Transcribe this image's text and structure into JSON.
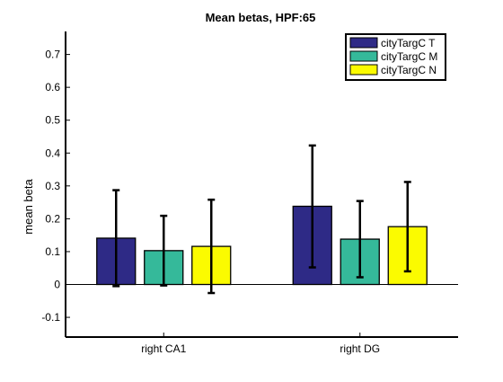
{
  "chart_data": {
    "type": "bar",
    "title": "Mean betas, HPF:65",
    "xlabel": "",
    "ylabel": "mean beta",
    "ylim": [
      -0.16,
      0.77
    ],
    "yticks": [
      -0.1,
      0,
      0.1,
      0.2,
      0.3,
      0.4,
      0.5,
      0.6,
      0.7
    ],
    "ytick_labels": [
      "-0.1",
      "0",
      "0.1",
      "0.2",
      "0.3",
      "0.4",
      "0.5",
      "0.6",
      "0.7"
    ],
    "categories": [
      "right CA1",
      "right DG"
    ],
    "series": [
      {
        "name": "cityTargC T",
        "color": "#2e2a86",
        "values": [
          0.141,
          0.238
        ],
        "err_low": [
          -0.005,
          0.052
        ],
        "err_high": [
          0.287,
          0.423
        ]
      },
      {
        "name": "cityTargC M",
        "color": "#35b99a",
        "values": [
          0.103,
          0.138
        ],
        "err_low": [
          -0.003,
          0.022
        ],
        "err_high": [
          0.209,
          0.254
        ]
      },
      {
        "name": "cityTargC N",
        "color": "#fbfb00",
        "values": [
          0.116,
          0.176
        ],
        "err_low": [
          -0.026,
          0.04
        ],
        "err_high": [
          0.258,
          0.312
        ]
      }
    ],
    "error_bars": true,
    "grid": false,
    "legend_position": "top-right"
  }
}
